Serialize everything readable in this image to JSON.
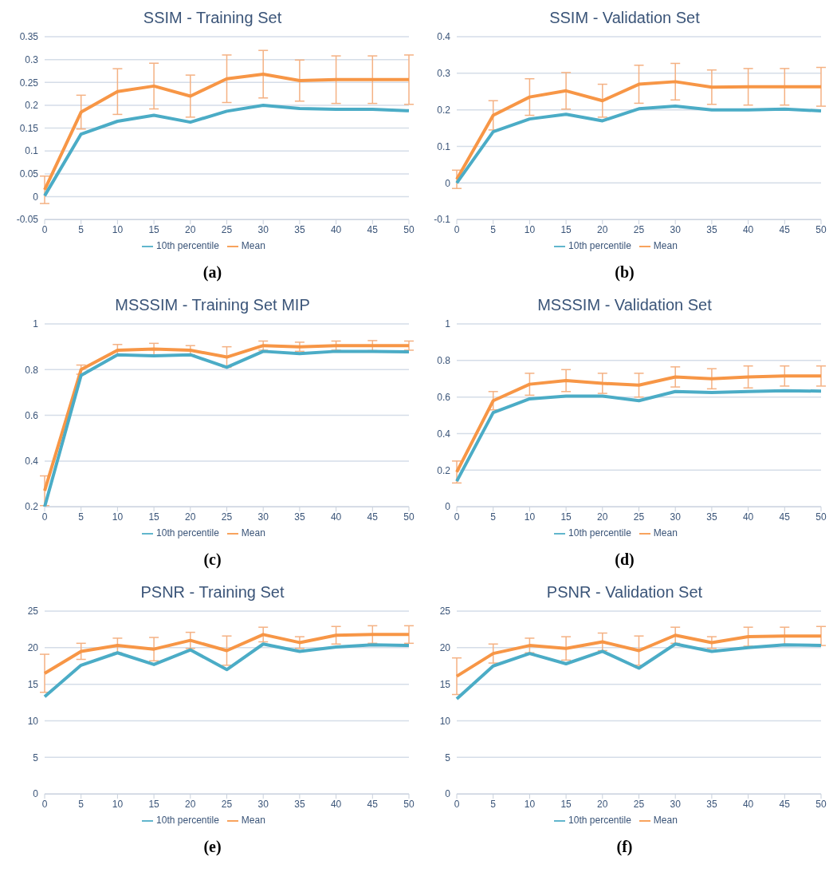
{
  "chart_data": [
    {
      "type": "line",
      "title": "SSIM - Training Set",
      "categories": [
        "0",
        "5",
        "10",
        "15",
        "20",
        "25",
        "30",
        "35",
        "40",
        "45",
        "50"
      ],
      "ylim": [
        -0.05,
        0.35
      ],
      "yticks": [
        -0.05,
        0,
        0.05,
        0.1,
        0.15,
        0.2,
        0.25,
        0.3,
        0.35
      ],
      "grid": "y",
      "legend": "bottom",
      "marker": "none",
      "line_style": "solid",
      "annotations": [
        "(a)"
      ],
      "series": [
        {
          "name": "Mean",
          "color": "#f79646",
          "values": [
            0.015,
            0.185,
            0.23,
            0.242,
            0.22,
            0.258,
            0.268,
            0.254,
            0.256,
            0.256,
            0.256
          ],
          "errors": [
            0.03,
            0.037,
            0.05,
            0.05,
            0.046,
            0.052,
            0.052,
            0.045,
            0.052,
            0.052,
            0.054
          ]
        },
        {
          "name": "10th percentile",
          "color": "#4bacc6",
          "values": [
            0.002,
            0.137,
            0.165,
            0.178,
            0.163,
            0.187,
            0.2,
            0.193,
            0.191,
            0.191,
            0.188
          ]
        }
      ]
    },
    {
      "type": "line",
      "title": "SSIM - Validation Set",
      "categories": [
        "0",
        "5",
        "10",
        "15",
        "20",
        "25",
        "30",
        "35",
        "40",
        "45",
        "50"
      ],
      "ylim": [
        -0.1,
        0.4
      ],
      "yticks": [
        -0.1,
        0,
        0.1,
        0.2,
        0.3,
        0.4
      ],
      "grid": "y",
      "legend": "bottom",
      "marker": "none",
      "line_style": "solid",
      "annotations": [
        "(b)"
      ],
      "series": [
        {
          "name": "Mean",
          "color": "#f79646",
          "values": [
            0.01,
            0.185,
            0.235,
            0.252,
            0.225,
            0.27,
            0.277,
            0.262,
            0.263,
            0.263,
            0.263
          ],
          "errors": [
            0.025,
            0.04,
            0.05,
            0.05,
            0.045,
            0.052,
            0.05,
            0.047,
            0.05,
            0.05,
            0.053
          ]
        },
        {
          "name": "10th percentile",
          "color": "#4bacc6",
          "values": [
            0.0,
            0.14,
            0.175,
            0.188,
            0.17,
            0.203,
            0.21,
            0.2,
            0.2,
            0.202,
            0.197
          ]
        }
      ]
    },
    {
      "type": "line",
      "title": "MSSSIM - Training Set MIP",
      "categories": [
        "0",
        "5",
        "10",
        "15",
        "20",
        "25",
        "30",
        "35",
        "40",
        "45",
        "50"
      ],
      "ylim": [
        0.2,
        1
      ],
      "yticks": [
        0.2,
        0.4,
        0.6,
        0.8,
        1
      ],
      "grid": "y",
      "legend": "bottom",
      "marker": "none",
      "line_style": "solid",
      "annotations": [
        "(c)"
      ],
      "series": [
        {
          "name": "Mean",
          "color": "#f79646",
          "values": [
            0.27,
            0.8,
            0.885,
            0.89,
            0.885,
            0.855,
            0.905,
            0.9,
            0.905,
            0.905,
            0.905
          ],
          "errors": [
            0.065,
            0.02,
            0.025,
            0.025,
            0.02,
            0.045,
            0.02,
            0.02,
            0.02,
            0.022,
            0.02
          ]
        },
        {
          "name": "10th percentile",
          "color": "#4bacc6",
          "values": [
            0.2,
            0.775,
            0.865,
            0.86,
            0.865,
            0.81,
            0.88,
            0.87,
            0.88,
            0.88,
            0.878
          ]
        }
      ]
    },
    {
      "type": "line",
      "title": "MSSSIM - Validation Set",
      "categories": [
        "0",
        "5",
        "10",
        "15",
        "20",
        "25",
        "30",
        "35",
        "40",
        "45",
        "50"
      ],
      "ylim": [
        0,
        1
      ],
      "yticks": [
        0,
        0.2,
        0.4,
        0.6,
        0.8,
        1
      ],
      "grid": "y",
      "legend": "bottom",
      "marker": "none",
      "line_style": "solid",
      "annotations": [
        "(d)"
      ],
      "series": [
        {
          "name": "Mean",
          "color": "#f79646",
          "values": [
            0.19,
            0.58,
            0.67,
            0.69,
            0.675,
            0.665,
            0.71,
            0.7,
            0.71,
            0.715,
            0.715
          ],
          "errors": [
            0.06,
            0.05,
            0.06,
            0.06,
            0.055,
            0.065,
            0.055,
            0.055,
            0.06,
            0.055,
            0.055
          ]
        },
        {
          "name": "10th percentile",
          "color": "#4bacc6",
          "values": [
            0.14,
            0.515,
            0.59,
            0.605,
            0.605,
            0.58,
            0.63,
            0.625,
            0.63,
            0.635,
            0.632
          ]
        }
      ]
    },
    {
      "type": "line",
      "title": "PSNR - Training Set",
      "categories": [
        "0",
        "5",
        "10",
        "15",
        "20",
        "25",
        "30",
        "35",
        "40",
        "45",
        "50"
      ],
      "ylim": [
        0,
        25
      ],
      "yticks": [
        0,
        5,
        10,
        15,
        20,
        25
      ],
      "grid": "y",
      "legend": "bottom",
      "marker": "none",
      "line_style": "solid",
      "annotations": [
        "(e)"
      ],
      "series": [
        {
          "name": "Mean",
          "color": "#f79646",
          "values": [
            16.5,
            19.5,
            20.3,
            19.8,
            21.0,
            19.6,
            21.8,
            20.7,
            21.7,
            21.8,
            21.8
          ],
          "errors": [
            2.6,
            1.1,
            1.0,
            1.6,
            1.1,
            2.0,
            1.0,
            0.8,
            1.2,
            1.2,
            1.2
          ]
        },
        {
          "name": "10th percentile",
          "color": "#4bacc6",
          "values": [
            13.3,
            17.6,
            19.3,
            17.7,
            19.7,
            17.0,
            20.5,
            19.5,
            20.1,
            20.4,
            20.3
          ]
        }
      ]
    },
    {
      "type": "line",
      "title": "PSNR - Validation Set",
      "categories": [
        "0",
        "5",
        "10",
        "15",
        "20",
        "25",
        "30",
        "35",
        "40",
        "45",
        "50"
      ],
      "ylim": [
        0,
        25
      ],
      "yticks": [
        0,
        5,
        10,
        15,
        20,
        25
      ],
      "grid": "y",
      "legend": "bottom",
      "marker": "none",
      "line_style": "solid",
      "annotations": [
        "(f)"
      ],
      "series": [
        {
          "name": "Mean",
          "color": "#f79646",
          "values": [
            16.1,
            19.2,
            20.3,
            19.9,
            20.8,
            19.6,
            21.7,
            20.7,
            21.5,
            21.6,
            21.6
          ],
          "errors": [
            2.5,
            1.3,
            1.0,
            1.6,
            1.2,
            2.0,
            1.1,
            0.8,
            1.3,
            1.2,
            1.3
          ]
        },
        {
          "name": "10th percentile",
          "color": "#4bacc6",
          "values": [
            13.0,
            17.5,
            19.2,
            17.8,
            19.5,
            17.2,
            20.5,
            19.5,
            20.0,
            20.4,
            20.3
          ]
        }
      ]
    }
  ]
}
